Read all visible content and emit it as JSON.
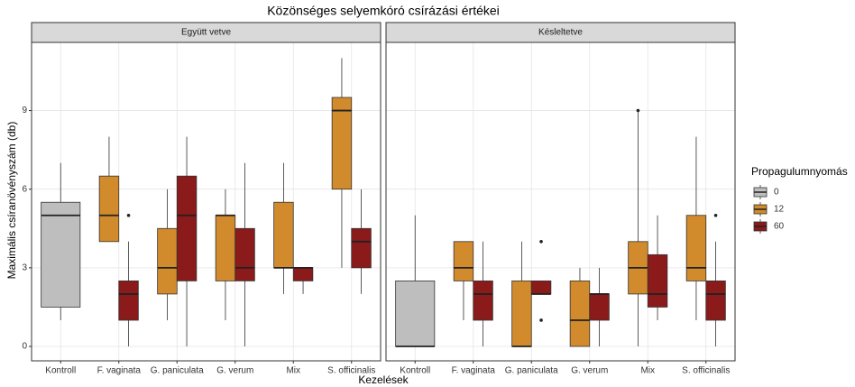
{
  "chart_data": {
    "type": "box",
    "title": "Közönséges selyemkóró csírázási értékei",
    "x_label": "Kezelések",
    "y_label": "Maximális csíranövényszám (db)",
    "legend_title": "Propagulumnyomás",
    "categories": [
      "Kontroll",
      "F. vaginata",
      "G. paniculata",
      "G. verum",
      "Mix",
      "S. officinalis"
    ],
    "ylim": [
      -0.55,
      11.6
    ],
    "yticks": [
      0,
      3,
      6,
      9
    ],
    "grid": true,
    "legend": "right",
    "series": [
      {
        "name": "0",
        "color": "#bebebe"
      },
      {
        "name": "12",
        "color": "#d18a2c"
      },
      {
        "name": "60",
        "color": "#8b1a1a"
      }
    ],
    "panels": [
      {
        "title": "Együtt vetve",
        "boxes": [
          [
            {
              "min": 1,
              "q1": 1.5,
              "median": 5,
              "q3": 5.5,
              "max": 7,
              "outliers": []
            },
            null,
            null,
            null,
            null,
            null
          ],
          [
            null,
            {
              "min": 4,
              "q1": 4,
              "median": 5,
              "q3": 6.5,
              "max": 8,
              "outliers": []
            },
            {
              "min": 1,
              "q1": 2,
              "median": 3,
              "q3": 4.5,
              "max": 6,
              "outliers": []
            },
            {
              "min": 1,
              "q1": 2.5,
              "median": 5,
              "q3": 5,
              "max": 6,
              "outliers": []
            },
            {
              "min": 2,
              "q1": 3,
              "median": 3,
              "q3": 5.5,
              "max": 7,
              "outliers": []
            },
            {
              "min": 3,
              "q1": 6,
              "median": 9,
              "q3": 9.5,
              "max": 11,
              "outliers": []
            }
          ],
          [
            null,
            {
              "min": 0,
              "q1": 1,
              "median": 2,
              "q3": 2.5,
              "max": 4,
              "outliers": [
                5
              ]
            },
            {
              "min": 0,
              "q1": 2.5,
              "median": 5,
              "q3": 6.5,
              "max": 8,
              "outliers": []
            },
            {
              "min": 0,
              "q1": 2.5,
              "median": 3,
              "q3": 4.5,
              "max": 7,
              "outliers": []
            },
            {
              "min": 2,
              "q1": 2.5,
              "median": 3,
              "q3": 3,
              "max": 3,
              "outliers": []
            },
            {
              "min": 2,
              "q1": 3,
              "median": 4,
              "q3": 4.5,
              "max": 6,
              "outliers": []
            }
          ]
        ]
      },
      {
        "title": "Késleltetve",
        "boxes": [
          [
            {
              "min": 0,
              "q1": 0,
              "median": 0,
              "q3": 2.5,
              "max": 5,
              "outliers": []
            },
            null,
            null,
            null,
            null,
            null
          ],
          [
            null,
            {
              "min": 1,
              "q1": 2.5,
              "median": 3,
              "q3": 4,
              "max": 4,
              "outliers": []
            },
            {
              "min": 0,
              "q1": 0,
              "median": 0,
              "q3": 2.5,
              "max": 4,
              "outliers": []
            },
            {
              "min": 0,
              "q1": 0,
              "median": 1,
              "q3": 2.5,
              "max": 3,
              "outliers": []
            },
            {
              "min": 0,
              "q1": 2,
              "median": 3,
              "q3": 4,
              "max": 9,
              "outliers": [
                9
              ]
            },
            {
              "min": 1,
              "q1": 2.5,
              "median": 3,
              "q3": 5,
              "max": 8,
              "outliers": []
            }
          ],
          [
            null,
            {
              "min": 0,
              "q1": 1,
              "median": 2,
              "q3": 2.5,
              "max": 4,
              "outliers": []
            },
            {
              "min": 2,
              "q1": 2,
              "median": 2,
              "q3": 2.5,
              "max": 2.5,
              "outliers": [
                1,
                4
              ]
            },
            {
              "min": 0,
              "q1": 1,
              "median": 2,
              "q3": 2,
              "max": 3,
              "outliers": []
            },
            {
              "min": 1,
              "q1": 1.5,
              "median": 2,
              "q3": 3.5,
              "max": 5,
              "outliers": []
            },
            {
              "min": 0,
              "q1": 1,
              "median": 2,
              "q3": 2.5,
              "max": 4,
              "outliers": [
                5
              ]
            }
          ]
        ]
      }
    ]
  }
}
